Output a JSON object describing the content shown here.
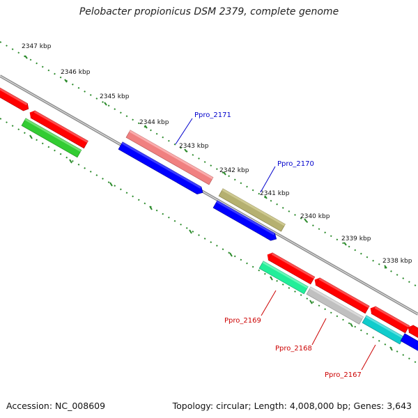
{
  "title": "Pelobacter propionicus DSM 2379, complete genome",
  "footer": {
    "accession": "Accession: NC_008609",
    "stats": "Topology: circular; Length: 4,008,000 bp; Genes: 3,643"
  },
  "colors": {
    "backbone": "#8a8a8a",
    "tick": "#2a8a2a",
    "label_forward": "#0000cc",
    "label_reverse": "#cc0000"
  },
  "scale_labels": [
    "2347 kbp",
    "2346 kbp",
    "2345 kbp",
    "2344 kbp",
    "2343 kbp",
    "2342 kbp",
    "2341 kbp",
    "2340 kbp",
    "2339 kbp",
    "2338 kbp"
  ],
  "gene_labels": [
    {
      "id": "Ppro_2171",
      "strand": "forward"
    },
    {
      "id": "Ppro_2170",
      "strand": "forward"
    },
    {
      "id": "Ppro_2169",
      "strand": "reverse"
    },
    {
      "id": "Ppro_2168",
      "strand": "reverse"
    },
    {
      "id": "Ppro_2167",
      "strand": "reverse"
    }
  ]
}
